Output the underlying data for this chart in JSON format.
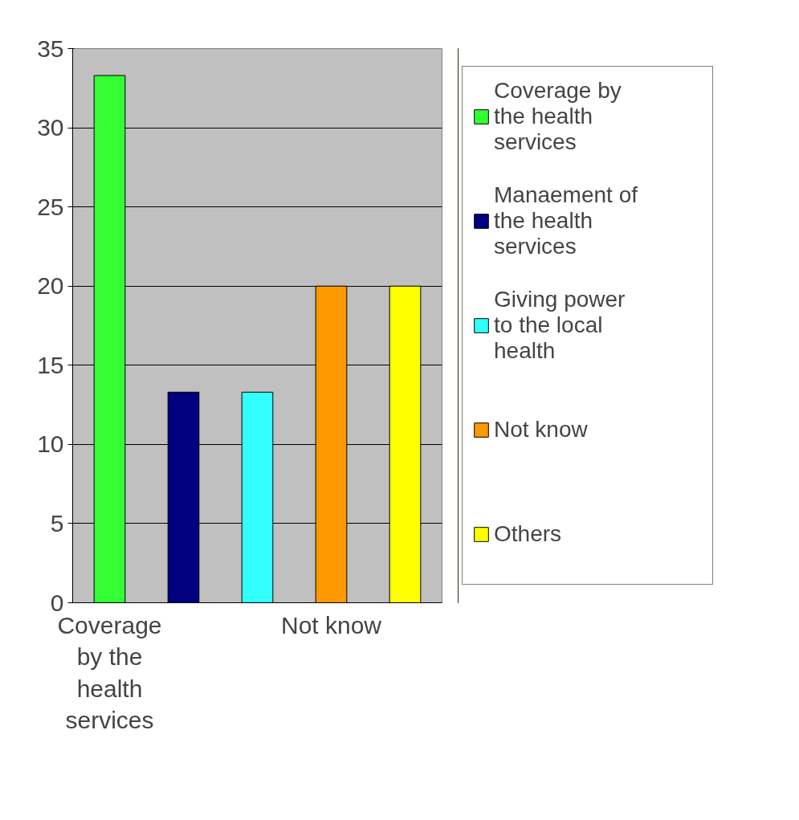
{
  "chart_data": {
    "type": "bar",
    "categories": [
      "Coverage by the health services",
      null,
      null,
      "Not know",
      null
    ],
    "series": [
      {
        "name": "Coverage by the health services",
        "color": "#33ff33",
        "values": [
          33.3,
          null,
          null,
          null,
          null
        ]
      },
      {
        "name": "Manaement of the health services",
        "color": "#000080",
        "values": [
          null,
          13.3,
          null,
          null,
          null
        ]
      },
      {
        "name": "Giving power to the local health",
        "color": "#33ffff",
        "values": [
          null,
          null,
          13.3,
          null,
          null
        ]
      },
      {
        "name": "Not know",
        "color": "#ff9900",
        "values": [
          null,
          null,
          null,
          20,
          null
        ]
      },
      {
        "name": "Others",
        "color": "#ffff00",
        "values": [
          null,
          null,
          null,
          null,
          20
        ]
      }
    ],
    "ylim": [
      0,
      35
    ],
    "yticks": [
      0,
      5,
      10,
      15,
      20,
      25,
      30,
      35
    ],
    "grid": "y",
    "legend": "right"
  }
}
